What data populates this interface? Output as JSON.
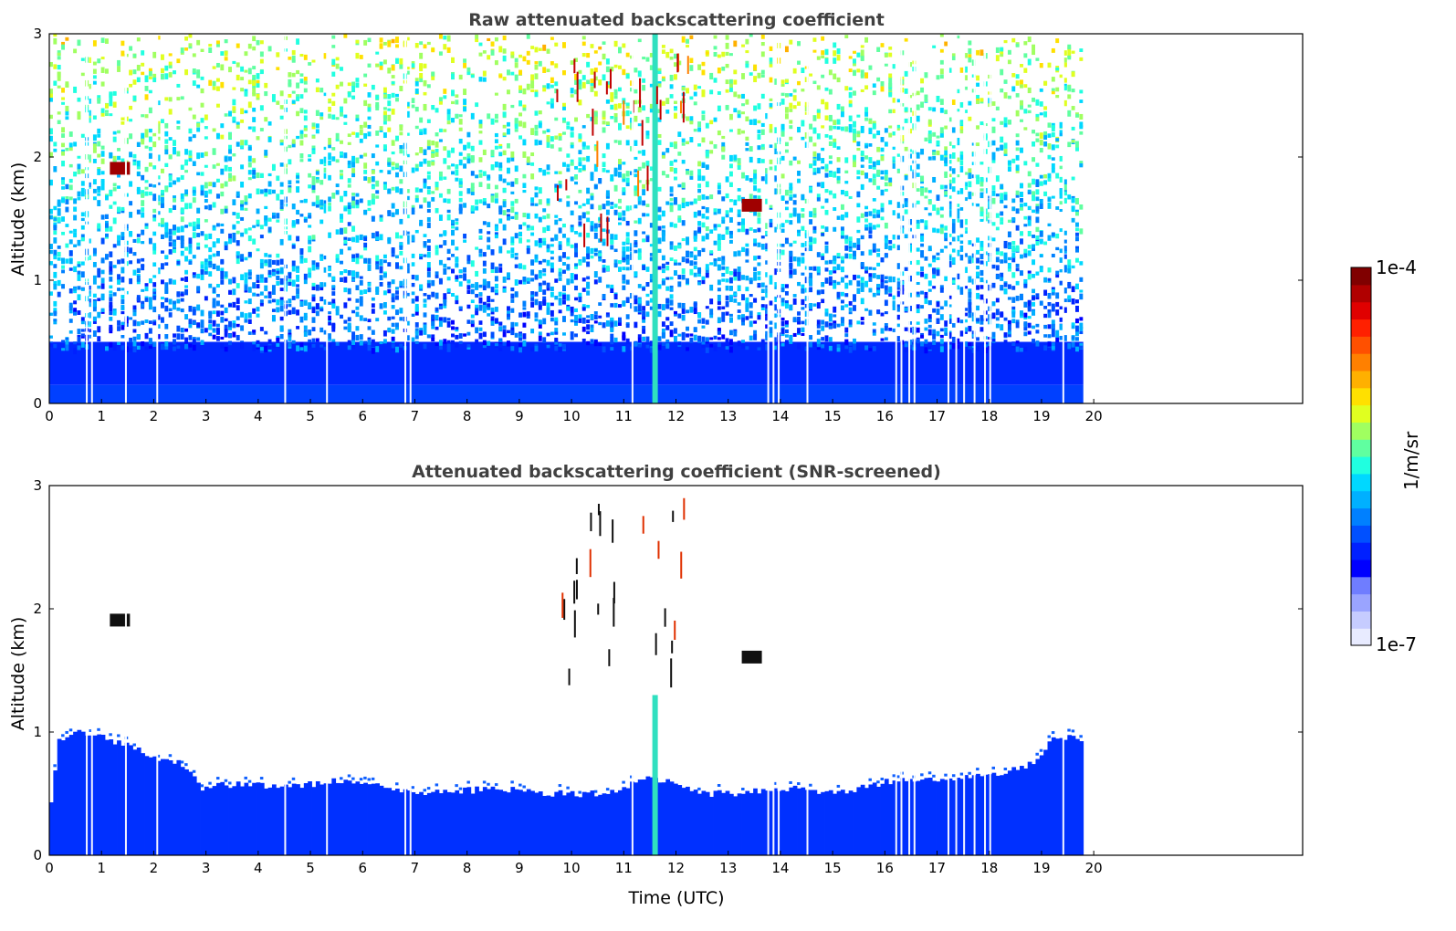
{
  "chart_data": [
    {
      "type": "heatmap",
      "title": "Raw attenuated backscattering coefficient",
      "xlabel": "",
      "ylabel": "Altitude (km)",
      "xlim": [
        0,
        24
      ],
      "ylim": [
        0,
        3
      ],
      "x_ticks": [
        "0",
        "1",
        "2",
        "3",
        "4",
        "5",
        "6",
        "7",
        "8",
        "9",
        "10",
        "11",
        "12",
        "13",
        "14",
        "15",
        "16",
        "17",
        "18",
        "19",
        "20"
      ],
      "y_ticks": [
        "0",
        "1",
        "2",
        "3"
      ],
      "data_end_hour": 19.8,
      "colormap": "jet",
      "features": [
        {
          "label": "dense near-surface backscatter",
          "t_start": 0,
          "t_end": 19.8,
          "alt_top": 0.5
        },
        {
          "label": "noisy upper signal",
          "t_start": 0,
          "t_end": 19.8,
          "alt_bottom": 0.5,
          "alt_top": 3
        },
        {
          "label": "cloud patch",
          "t": 1.3,
          "alt": 1.9
        },
        {
          "label": "strong plume",
          "t": 11.6,
          "alt_bottom": 0,
          "alt_top": 3
        },
        {
          "label": "scattered clouds",
          "t_start": 9.7,
          "t_end": 12.3,
          "alt_bottom": 1.4,
          "alt_top": 2.9
        },
        {
          "label": "cloud patch",
          "t": 13.4,
          "alt": 1.6
        }
      ],
      "gap_hours": [
        0.7,
        0.8,
        1.45,
        2.05,
        4.5,
        5.3,
        6.8,
        6.9,
        11.15,
        13.75,
        13.85,
        13.95,
        14.5,
        16.2,
        16.3,
        16.45,
        16.55,
        17.2,
        17.35,
        17.5,
        17.7,
        17.9,
        18.0,
        19.4
      ]
    },
    {
      "type": "heatmap",
      "title": "Attenuated backscattering coefficient (SNR-screened)",
      "xlabel": "Time (UTC)",
      "ylabel": "Altitude (km)",
      "xlim": [
        0,
        24
      ],
      "ylim": [
        0,
        3
      ],
      "x_ticks": [
        "0",
        "1",
        "2",
        "3",
        "4",
        "5",
        "6",
        "7",
        "8",
        "9",
        "10",
        "11",
        "12",
        "13",
        "14",
        "15",
        "16",
        "17",
        "18",
        "19",
        "20"
      ],
      "y_ticks": [
        "0",
        "1",
        "2",
        "3"
      ],
      "data_end_hour": 19.8,
      "colormap": "jet",
      "boundary_layer_top_km": [
        [
          0.0,
          0.45
        ],
        [
          0.15,
          0.95
        ],
        [
          0.5,
          1.0
        ],
        [
          1.0,
          0.95
        ],
        [
          1.5,
          0.9
        ],
        [
          2.0,
          0.78
        ],
        [
          2.5,
          0.75
        ],
        [
          2.9,
          0.55
        ],
        [
          3.5,
          0.58
        ],
        [
          4.5,
          0.55
        ],
        [
          5.5,
          0.6
        ],
        [
          6.5,
          0.55
        ],
        [
          7.5,
          0.5
        ],
        [
          8.5,
          0.55
        ],
        [
          9.5,
          0.5
        ],
        [
          10.5,
          0.5
        ],
        [
          11.0,
          0.55
        ],
        [
          11.5,
          0.65
        ],
        [
          12.0,
          0.55
        ],
        [
          12.5,
          0.5
        ],
        [
          13.0,
          0.5
        ],
        [
          14.0,
          0.55
        ],
        [
          15.0,
          0.5
        ],
        [
          16.0,
          0.6
        ],
        [
          17.0,
          0.6
        ],
        [
          18.0,
          0.65
        ],
        [
          18.8,
          0.75
        ],
        [
          19.2,
          0.95
        ],
        [
          19.8,
          0.95
        ]
      ],
      "features": [
        {
          "label": "cloud patch",
          "t": 1.3,
          "alt": 1.9
        },
        {
          "label": "strong plume",
          "t": 11.6,
          "alt_bottom": 0,
          "alt_top": 1.3
        },
        {
          "label": "scattered clouds",
          "t_start": 9.7,
          "t_end": 12.3,
          "alt_bottom": 1.4,
          "alt_top": 2.9
        },
        {
          "label": "cloud patch",
          "t": 13.4,
          "alt": 1.6
        }
      ],
      "gap_hours": [
        0.7,
        0.8,
        1.45,
        2.05,
        4.5,
        5.3,
        6.8,
        6.9,
        11.15,
        13.75,
        13.85,
        13.95,
        14.5,
        16.2,
        16.3,
        16.45,
        16.55,
        17.2,
        17.35,
        17.5,
        17.7,
        17.9,
        18.0,
        19.4
      ]
    }
  ],
  "colorbar": {
    "max_label": "1e-4",
    "min_label": "1e-7",
    "label": "1/m/sr",
    "colors": [
      "#e8ebff",
      "#c6ccff",
      "#9aa4ff",
      "#6f7dff",
      "#0000ff",
      "#0020ff",
      "#0050ff",
      "#0080ff",
      "#00b0ff",
      "#00d8ff",
      "#20ffe0",
      "#60ffa0",
      "#a0ff60",
      "#e0ff20",
      "#ffe000",
      "#ffb000",
      "#ff8000",
      "#ff5000",
      "#ff2000",
      "#e00000",
      "#b00000",
      "#800000"
    ]
  }
}
